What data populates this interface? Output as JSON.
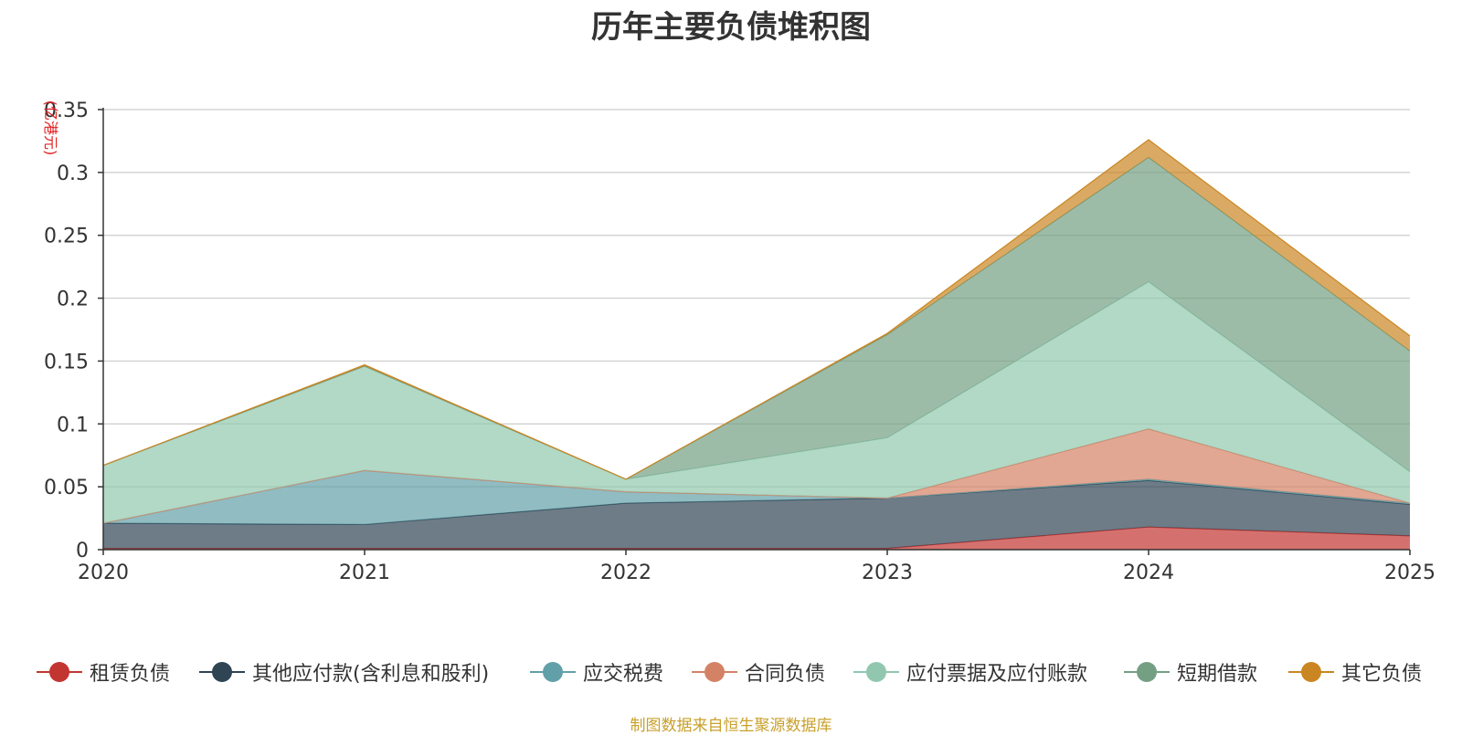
{
  "chart_data": {
    "type": "area",
    "stacked": true,
    "title": "历年主要负债堆积图",
    "ylabel": "(亿港元)",
    "xlabel": "",
    "categories": [
      "2020",
      "2021",
      "2022",
      "2023",
      "2024",
      "2025"
    ],
    "ylim": [
      0,
      0.35
    ],
    "yticks": [
      "0",
      "0.05",
      "0.1",
      "0.15",
      "0.2",
      "0.25",
      "0.3",
      "0.35"
    ],
    "grid": true,
    "legend_position": "bottom",
    "series": [
      {
        "name": "租赁负债",
        "color": "#c23531",
        "values": [
          0.001,
          0.001,
          0.001,
          0.001,
          0.018,
          0.011
        ]
      },
      {
        "name": "其他应付款(含利息和股利)",
        "color": "#2f4554",
        "values": [
          0.02,
          0.019,
          0.036,
          0.04,
          0.037,
          0.025
        ]
      },
      {
        "name": "应交税费",
        "color": "#61a0a8",
        "values": [
          0.0,
          0.043,
          0.009,
          0.0,
          0.001,
          0.001
        ]
      },
      {
        "name": "合同负债",
        "color": "#d48265",
        "values": [
          0.0,
          0.0,
          0.0,
          0.0,
          0.04,
          0.0
        ]
      },
      {
        "name": "应付票据及应付账款",
        "color": "#91c7ae",
        "values": [
          0.046,
          0.083,
          0.01,
          0.048,
          0.117,
          0.025
        ]
      },
      {
        "name": "短期借款",
        "color": "#749f83",
        "values": [
          0.0,
          0.0,
          0.0,
          0.082,
          0.099,
          0.096
        ]
      },
      {
        "name": "其它负债",
        "color": "#ca8622",
        "values": [
          0.0,
          0.001,
          0.0,
          0.001,
          0.014,
          0.012
        ]
      }
    ]
  },
  "source_note": "制图数据来自恒生聚源数据库"
}
